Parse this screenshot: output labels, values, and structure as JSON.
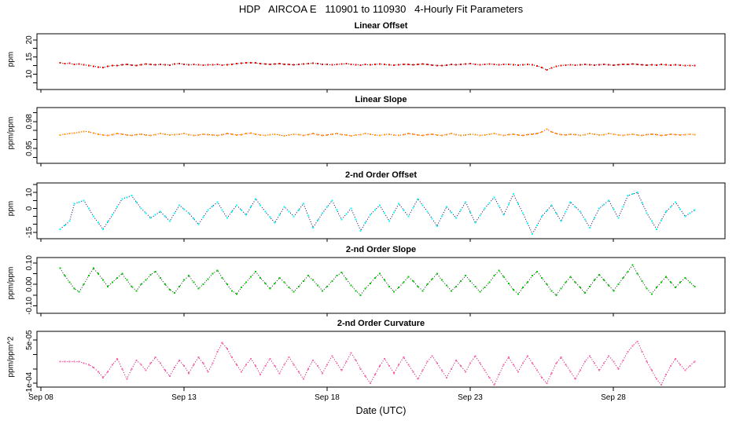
{
  "header": {
    "title": "HDP   AIRCOA E   110901 to 110930   4-Hourly Fit Parameters"
  },
  "xaxis": {
    "label": "Date (UTC)",
    "ticks": [
      {
        "day": 8,
        "label": "Sep 08"
      },
      {
        "day": 13,
        "label": "Sep 13"
      },
      {
        "day": 18,
        "label": "Sep 18"
      },
      {
        "day": 23,
        "label": "Sep 23"
      },
      {
        "day": 28,
        "label": "Sep 28"
      }
    ]
  },
  "chart_data": [
    {
      "type": "scatter",
      "title": "Linear Offset",
      "ylabel": "ppm",
      "ylim": [
        5.5,
        21.8
      ],
      "grid": false,
      "legend": "none",
      "yticks": [
        {
          "v": 20,
          "label": "20"
        },
        {
          "v": 17.5,
          "label": null
        },
        {
          "v": 15,
          "label": "15"
        },
        {
          "v": 12.5,
          "label": null
        },
        {
          "v": 10,
          "label": "10"
        },
        {
          "v": 7.5,
          "label": null
        }
      ],
      "colors": {
        "point": "#ff0000",
        "line": "#000000"
      },
      "x_start_day": 8.67,
      "x_step_days": 0.1667,
      "value_scale": 1,
      "values": [
        13.25,
        13.05,
        13.15,
        12.85,
        12.95,
        12.7,
        12.55,
        12.3,
        12.1,
        11.95,
        12.25,
        12.55,
        12.45,
        12.75,
        12.85,
        12.65,
        12.55,
        12.75,
        12.95,
        12.8,
        12.7,
        12.85,
        12.75,
        12.65,
        13.0,
        13.1,
        12.9,
        12.75,
        12.8,
        12.7,
        12.6,
        12.75,
        12.7,
        12.8,
        12.65,
        12.75,
        12.9,
        13.05,
        13.2,
        13.3,
        13.35,
        13.25,
        13.1,
        12.95,
        12.85,
        12.95,
        13.05,
        12.9,
        12.8,
        12.7,
        12.85,
        12.95,
        13.1,
        13.2,
        13.05,
        12.9,
        12.8,
        12.7,
        12.8,
        12.95,
        13.05,
        12.9,
        12.75,
        12.65,
        12.8,
        12.7,
        12.85,
        12.95,
        12.8,
        12.7,
        12.6,
        12.75,
        12.9,
        12.8,
        12.7,
        12.85,
        12.95,
        12.8,
        12.65,
        12.55,
        12.45,
        12.65,
        12.8,
        12.7,
        12.85,
        12.95,
        13.05,
        12.9,
        12.75,
        12.85,
        12.95,
        12.85,
        12.7,
        12.8,
        12.9,
        12.75,
        12.65,
        12.75,
        12.85,
        12.7,
        12.4,
        11.9,
        11.25,
        11.8,
        12.3,
        12.55,
        12.65,
        12.75,
        12.6,
        12.7,
        12.85,
        12.75,
        12.65,
        12.75,
        12.85,
        12.7,
        12.6,
        12.75,
        12.9,
        12.8,
        12.95,
        12.85,
        12.7,
        12.6,
        12.75,
        12.65,
        12.8,
        12.7,
        12.6,
        12.7,
        12.6,
        12.5,
        12.55,
        12.45
      ]
    },
    {
      "type": "scatter",
      "title": "Linear Slope",
      "ylabel": "ppm/ppm",
      "ylim": [
        0.9335,
        0.9955
      ],
      "grid": false,
      "legend": "none",
      "yticks": [
        {
          "v": 0.99,
          "label": null
        },
        {
          "v": 0.98,
          "label": "0.98"
        },
        {
          "v": 0.97,
          "label": null
        },
        {
          "v": 0.96,
          "label": null
        },
        {
          "v": 0.95,
          "label": "0.95"
        },
        {
          "v": 0.94,
          "label": null
        }
      ],
      "colors": {
        "point": "#ffa500",
        "line": "#ff0000"
      },
      "x_start_day": 8.67,
      "x_step_days": 0.1667,
      "value_scale": 1,
      "values": [
        0.965,
        0.966,
        0.9665,
        0.967,
        0.968,
        0.969,
        0.9685,
        0.967,
        0.966,
        0.965,
        0.9645,
        0.9655,
        0.9665,
        0.966,
        0.965,
        0.9645,
        0.9655,
        0.966,
        0.965,
        0.9645,
        0.9655,
        0.9665,
        0.966,
        0.965,
        0.9655,
        0.966,
        0.9665,
        0.9655,
        0.9645,
        0.965,
        0.966,
        0.9655,
        0.965,
        0.9645,
        0.9655,
        0.9665,
        0.966,
        0.965,
        0.9655,
        0.9665,
        0.967,
        0.966,
        0.965,
        0.9645,
        0.9655,
        0.966,
        0.965,
        0.964,
        0.965,
        0.966,
        0.9655,
        0.9645,
        0.9655,
        0.9665,
        0.9655,
        0.9645,
        0.965,
        0.966,
        0.9665,
        0.9655,
        0.965,
        0.964,
        0.965,
        0.9655,
        0.9665,
        0.966,
        0.965,
        0.9645,
        0.9655,
        0.966,
        0.965,
        0.9645,
        0.9655,
        0.9665,
        0.966,
        0.965,
        0.9645,
        0.9655,
        0.966,
        0.965,
        0.9645,
        0.9655,
        0.9665,
        0.9655,
        0.9645,
        0.965,
        0.966,
        0.9655,
        0.9645,
        0.965,
        0.966,
        0.9665,
        0.9655,
        0.9645,
        0.9655,
        0.966,
        0.965,
        0.9645,
        0.9655,
        0.966,
        0.9665,
        0.9685,
        0.9715,
        0.9685,
        0.9665,
        0.9655,
        0.965,
        0.966,
        0.9655,
        0.9645,
        0.9655,
        0.9665,
        0.966,
        0.965,
        0.9655,
        0.9665,
        0.966,
        0.965,
        0.9645,
        0.9655,
        0.966,
        0.965,
        0.9645,
        0.9655,
        0.966,
        0.9655,
        0.9645,
        0.965,
        0.966,
        0.9655,
        0.965,
        0.9655,
        0.966,
        0.9655
      ]
    },
    {
      "type": "scatter",
      "title": "2-nd Order Offset",
      "ylabel": "ppm",
      "ylim": [
        -19,
        16
      ],
      "grid": false,
      "legend": "none",
      "yticks": [
        {
          "v": 15,
          "label": null
        },
        {
          "v": 10,
          "label": "10"
        },
        {
          "v": 5,
          "label": null
        },
        {
          "v": 0,
          "label": "0"
        },
        {
          "v": -5,
          "label": null
        },
        {
          "v": -10,
          "label": null
        },
        {
          "v": -15,
          "label": "-15"
        }
      ],
      "colors": {
        "point": "#00ffff",
        "line": "#000066"
      },
      "x_start_day": 8.67,
      "x_step_days": 0.1667,
      "value_scale": 1,
      "values": [
        -13,
        -10.5,
        -8,
        3,
        4,
        5,
        0,
        -5,
        -9,
        -13,
        -8.5,
        -4,
        1,
        6,
        7,
        8,
        4,
        0,
        -3,
        -6,
        -4,
        -2,
        -5,
        -8,
        -3,
        2,
        -0.5,
        -3,
        -6.5,
        -10,
        -5.5,
        -1,
        1.5,
        4,
        -1,
        -6,
        -2,
        2,
        -1,
        -4,
        1,
        6,
        2,
        -2,
        -5.5,
        -9,
        -4,
        1,
        -2,
        -5,
        -1,
        3,
        -4.5,
        -12,
        -7.5,
        -3,
        1,
        5,
        -1,
        -7,
        -3.5,
        0,
        -7,
        -14,
        -9,
        -4,
        -1,
        2,
        -3,
        -8,
        -2.5,
        3,
        -1,
        -5,
        0.5,
        6,
        2,
        -2,
        -6.5,
        -11,
        -5,
        1,
        -2.5,
        -6,
        -1,
        4,
        -2.5,
        -9,
        -4.5,
        0,
        3.5,
        7,
        1.5,
        -4,
        2.5,
        9,
        3,
        -3,
        -9.5,
        -16,
        -10.5,
        -5,
        -1.5,
        2,
        -3,
        -8,
        -2,
        4,
        1,
        -2,
        -7,
        -12,
        -6,
        0,
        2.5,
        5,
        -0.5,
        -6,
        1,
        8,
        9,
        10,
        3.5,
        -3,
        -8,
        -13,
        -7.5,
        -2,
        1,
        4,
        -0.5,
        -5,
        -3,
        -1
      ]
    },
    {
      "type": "scatter",
      "title": "2-nd Order Slope",
      "ylabel": "ppm/ppm",
      "ylim": [
        -0.135,
        0.125
      ],
      "grid": false,
      "legend": "none",
      "yticks": [
        {
          "v": 0.1,
          "label": "0.10"
        },
        {
          "v": 0.05,
          "label": null
        },
        {
          "v": 0.0,
          "label": "0.00"
        },
        {
          "v": -0.05,
          "label": null
        },
        {
          "v": -0.1,
          "label": "-0.10"
        }
      ],
      "colors": {
        "point": "#00cc00",
        "line": "#003300"
      },
      "x_start_day": 8.67,
      "x_step_days": 0.1667,
      "value_scale": 1,
      "values": [
        0.075,
        0.04,
        0.01,
        -0.02,
        -0.035,
        0,
        0.04,
        0.075,
        0.05,
        0.02,
        -0.01,
        0.01,
        0.03,
        0.05,
        0.02,
        -0.01,
        -0.03,
        0,
        0.02,
        0.045,
        0.06,
        0.03,
        0,
        -0.025,
        -0.04,
        -0.01,
        0.02,
        0.04,
        0.01,
        -0.02,
        0,
        0.025,
        0.05,
        0.065,
        0.03,
        0,
        -0.03,
        -0.045,
        -0.015,
        0.01,
        0.035,
        0.06,
        0.03,
        0.005,
        -0.02,
        0.005,
        0.03,
        0.01,
        -0.015,
        -0.035,
        -0.01,
        0.015,
        0.04,
        0.02,
        -0.005,
        -0.03,
        -0.01,
        0.015,
        0.04,
        0.055,
        0.025,
        -0.005,
        -0.03,
        -0.05,
        -0.02,
        0.005,
        0.03,
        0.05,
        0.02,
        -0.01,
        -0.035,
        -0.015,
        0.01,
        0.035,
        0.015,
        -0.01,
        -0.03,
        0,
        0.025,
        0.05,
        0.02,
        -0.005,
        -0.03,
        -0.01,
        0.015,
        0.04,
        0.015,
        -0.01,
        -0.035,
        -0.015,
        0.01,
        0.04,
        0.065,
        0.035,
        0.005,
        -0.025,
        -0.045,
        -0.015,
        0.01,
        0.04,
        0.06,
        0.03,
        0,
        -0.03,
        -0.05,
        -0.02,
        0.01,
        0.035,
        0.01,
        -0.015,
        -0.04,
        -0.01,
        0.02,
        0.045,
        0.02,
        -0.005,
        -0.03,
        0,
        0.03,
        0.06,
        0.09,
        0.05,
        0.015,
        -0.02,
        -0.045,
        -0.015,
        0.01,
        0.035,
        0.01,
        -0.015,
        0.01,
        0.03,
        0.01,
        -0.01
      ]
    },
    {
      "type": "scatter",
      "title": "2-nd Order Curvature",
      "ylabel": "ppm/ppm^2",
      "ylim": [
        -0.000113,
        8e-05
      ],
      "grid": false,
      "legend": "none",
      "yticks": [
        {
          "v": 5e-05,
          "label": "5e-05"
        },
        {
          "v": 0,
          "label": null
        },
        {
          "v": -5e-05,
          "label": null
        },
        {
          "v": -0.0001,
          "label": "-1e-04"
        }
      ],
      "colors": {
        "point": "#ff69b4",
        "line": "#cc0066"
      },
      "x_start_day": 8.67,
      "x_step_days": 0.1667,
      "value_scale": 1e-05,
      "values": [
        -2.5,
        -2.5,
        -2.5,
        -2.5,
        -2.5,
        -3,
        -3.5,
        -4.5,
        -6,
        -8,
        -6,
        -3.5,
        -1.5,
        -5,
        -8.5,
        -5,
        -2,
        -3.5,
        -5.5,
        -3,
        -1,
        -3,
        -5.5,
        -7.5,
        -4.5,
        -2,
        -4,
        -6.5,
        -3.5,
        -1,
        -3,
        -6,
        -3,
        1,
        4,
        2,
        -1,
        -3.5,
        -6,
        -3.5,
        -1.5,
        -4,
        -7,
        -4,
        -1.5,
        -4,
        -6.5,
        -3.5,
        -1,
        -3.5,
        -6,
        -8.5,
        -5,
        -2,
        -4,
        -6.5,
        -3.5,
        -0.5,
        -3,
        -5.5,
        -2.5,
        0.5,
        -2,
        -5,
        -7.5,
        -10,
        -7,
        -4,
        -1.5,
        -4,
        -6.5,
        -3.5,
        -1,
        -3.5,
        -6,
        -8.5,
        -5.5,
        -2.5,
        -0.5,
        -3,
        -5.5,
        -8,
        -5,
        -2,
        -4,
        -6,
        -3,
        -0.5,
        -3,
        -5.5,
        -8,
        -10.5,
        -7,
        -3.5,
        -1,
        -3.5,
        -6,
        -3,
        -0.5,
        -3,
        -5.5,
        -8,
        -10,
        -6.5,
        -3,
        -1,
        -3.5,
        -6,
        -8.5,
        -5.5,
        -2.5,
        -0.5,
        -3,
        -5.5,
        -3,
        -0.5,
        -2.5,
        -5,
        -2,
        1,
        3,
        4.5,
        1,
        -2.5,
        -5.5,
        -8.5,
        -10.5,
        -7,
        -4,
        -1.5,
        -3.5,
        -5.5,
        -4,
        -2.5
      ]
    }
  ]
}
